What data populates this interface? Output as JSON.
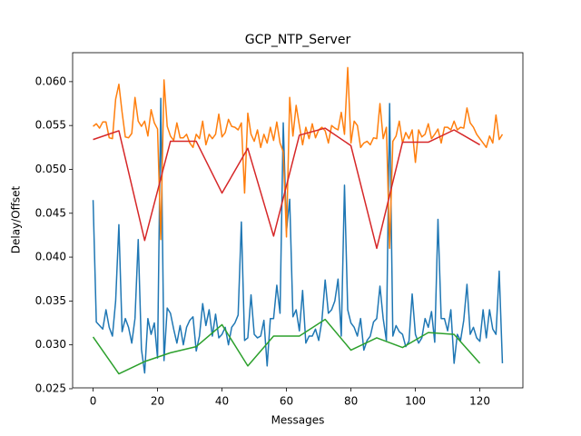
{
  "chart_data": {
    "type": "line",
    "title": "GCP_NTP_Server",
    "xlabel": "Messages",
    "ylabel": "Delay/Offset",
    "xlim": [
      -6.35,
      133.35
    ],
    "ylim": [
      0.0251,
      0.0633
    ],
    "xticks": [
      0,
      20,
      40,
      60,
      80,
      100,
      120
    ],
    "yticks": [
      0.025,
      {
        "value": 0.03,
        "label": "0.030"
      },
      0.035,
      {
        "value": 0.04,
        "label": "0.040"
      },
      0.045,
      {
        "value": 0.05,
        "label": "0.050"
      },
      0.055,
      {
        "value": 0.06,
        "label": "0.060"
      }
    ],
    "series": [
      {
        "color": "#1f77b4",
        "x": [
          0,
          1,
          2,
          3,
          4,
          5,
          6,
          7,
          8,
          9,
          10,
          11,
          12,
          13,
          14,
          15,
          16,
          17,
          18,
          19,
          20,
          21,
          22,
          23,
          24,
          25,
          26,
          27,
          28,
          29,
          30,
          31,
          32,
          33,
          34,
          35,
          36,
          37,
          38,
          39,
          40,
          41,
          42,
          43,
          44,
          45,
          46,
          47,
          48,
          49,
          50,
          51,
          52,
          53,
          54,
          55,
          56,
          57,
          58,
          59,
          60,
          61,
          62,
          63,
          64,
          65,
          66,
          67,
          68,
          69,
          70,
          71,
          72,
          73,
          74,
          75,
          76,
          77,
          78,
          79,
          80,
          81,
          82,
          83,
          84,
          85,
          86,
          87,
          88,
          89,
          90,
          91,
          92,
          93,
          94,
          95,
          96,
          97,
          98,
          99,
          100,
          101,
          102,
          103,
          104,
          105,
          106,
          107,
          108,
          109,
          110,
          111,
          112,
          113,
          114,
          115,
          116,
          117,
          118,
          119,
          120,
          121,
          122,
          123,
          124,
          125,
          126,
          127
        ],
        "values": [
          0.0465,
          0.0326,
          0.0322,
          0.0318,
          0.034,
          0.032,
          0.031,
          0.035,
          0.0437,
          0.0315,
          0.033,
          0.032,
          0.0302,
          0.033,
          0.042,
          0.0295,
          0.0268,
          0.033,
          0.0312,
          0.0325,
          0.0285,
          0.0581,
          0.0282,
          0.0342,
          0.0336,
          0.0318,
          0.0302,
          0.0322,
          0.03,
          0.032,
          0.0328,
          0.0332,
          0.0293,
          0.031,
          0.0347,
          0.0322,
          0.034,
          0.031,
          0.0335,
          0.0308,
          0.0312,
          0.032,
          0.03,
          0.032,
          0.0325,
          0.0334,
          0.044,
          0.0305,
          0.0308,
          0.0357,
          0.0312,
          0.0308,
          0.031,
          0.0328,
          0.0276,
          0.033,
          0.033,
          0.0368,
          0.0336,
          0.0553,
          0.043,
          0.0466,
          0.0332,
          0.034,
          0.0316,
          0.0362,
          0.0302,
          0.031,
          0.031,
          0.0318,
          0.0305,
          0.0328,
          0.0374,
          0.0336,
          0.034,
          0.035,
          0.0375,
          0.031,
          0.0482,
          0.034,
          0.0325,
          0.032,
          0.031,
          0.033,
          0.0294,
          0.0305,
          0.031,
          0.0326,
          0.033,
          0.0367,
          0.033,
          0.0305,
          0.0575,
          0.031,
          0.0322,
          0.0315,
          0.0312,
          0.0298,
          0.0304,
          0.0358,
          0.0312,
          0.0302,
          0.0308,
          0.033,
          0.032,
          0.0338,
          0.0303,
          0.0443,
          0.033,
          0.033,
          0.0316,
          0.034,
          0.0279,
          0.0312,
          0.0305,
          0.0328,
          0.0369,
          0.0312,
          0.032,
          0.0308,
          0.0304,
          0.034,
          0.0308,
          0.034,
          0.0318,
          0.0312,
          0.0384,
          0.0279
        ]
      },
      {
        "color": "#ff7f0e",
        "x": [
          0,
          1,
          2,
          3,
          4,
          5,
          6,
          7,
          8,
          9,
          10,
          11,
          12,
          13,
          14,
          15,
          16,
          17,
          18,
          19,
          20,
          21,
          22,
          23,
          24,
          25,
          26,
          27,
          28,
          29,
          30,
          31,
          32,
          33,
          34,
          35,
          36,
          37,
          38,
          39,
          40,
          41,
          42,
          43,
          44,
          45,
          46,
          47,
          48,
          49,
          50,
          51,
          52,
          53,
          54,
          55,
          56,
          57,
          58,
          59,
          60,
          61,
          62,
          63,
          64,
          65,
          66,
          67,
          68,
          69,
          70,
          71,
          72,
          73,
          74,
          75,
          76,
          77,
          78,
          79,
          80,
          81,
          82,
          83,
          84,
          85,
          86,
          87,
          88,
          89,
          90,
          91,
          92,
          93,
          94,
          95,
          96,
          97,
          98,
          99,
          100,
          101,
          102,
          103,
          104,
          105,
          106,
          107,
          108,
          109,
          110,
          111,
          112,
          113,
          114,
          115,
          116,
          117,
          118,
          119,
          120,
          121,
          122,
          123,
          124,
          125,
          126,
          127
        ],
        "values": [
          0.0549,
          0.0552,
          0.0547,
          0.0554,
          0.0554,
          0.0536,
          0.0535,
          0.058,
          0.0597,
          0.0565,
          0.0537,
          0.0536,
          0.0541,
          0.0582,
          0.0555,
          0.0549,
          0.0555,
          0.0538,
          0.0568,
          0.0553,
          0.0546,
          0.042,
          0.0602,
          0.0549,
          0.0538,
          0.0533,
          0.0553,
          0.0536,
          0.0536,
          0.054,
          0.053,
          0.0525,
          0.054,
          0.0535,
          0.0555,
          0.0528,
          0.054,
          0.0535,
          0.054,
          0.0563,
          0.0537,
          0.0542,
          0.0557,
          0.0549,
          0.0548,
          0.0545,
          0.0553,
          0.0473,
          0.0564,
          0.054,
          0.0532,
          0.0545,
          0.0525,
          0.054,
          0.053,
          0.0548,
          0.0533,
          0.0554,
          0.053,
          0.052,
          0.0423,
          0.0582,
          0.0538,
          0.0573,
          0.055,
          0.0528,
          0.0548,
          0.0535,
          0.0552,
          0.0536,
          0.0545,
          0.0548,
          0.0544,
          0.053,
          0.055,
          0.0547,
          0.0545,
          0.0565,
          0.054,
          0.0616,
          0.053,
          0.0555,
          0.055,
          0.0525,
          0.053,
          0.0532,
          0.0528,
          0.0536,
          0.0535,
          0.0575,
          0.0535,
          0.0548,
          0.041,
          0.0532,
          0.0538,
          0.0555,
          0.053,
          0.0542,
          0.0535,
          0.0545,
          0.0508,
          0.0545,
          0.0537,
          0.054,
          0.0552,
          0.0535,
          0.054,
          0.0546,
          0.053,
          0.0548,
          0.0548,
          0.0545,
          0.0555,
          0.0545,
          0.0548,
          0.0547,
          0.057,
          0.0553,
          0.0548,
          0.054,
          0.0535,
          0.053,
          0.0525,
          0.0538,
          0.053,
          0.0562,
          0.0534,
          0.054
        ]
      },
      {
        "color": "#d62728",
        "x": [
          0,
          8,
          16,
          24,
          32,
          40,
          48,
          56,
          64,
          72,
          80,
          88,
          96,
          104,
          112,
          120
        ],
        "values": [
          0.0534,
          0.0544,
          0.0419,
          0.0532,
          0.0532,
          0.0473,
          0.0524,
          0.0424,
          0.0539,
          0.0547,
          0.0527,
          0.041,
          0.0531,
          0.0531,
          0.0545,
          0.0528
        ]
      },
      {
        "color": "#2ca02c",
        "x": [
          0,
          8,
          16,
          24,
          32,
          40,
          48,
          56,
          64,
          72,
          80,
          88,
          96,
          104,
          112,
          120
        ],
        "values": [
          0.0309,
          0.0267,
          0.0281,
          0.0291,
          0.0298,
          0.0323,
          0.0276,
          0.031,
          0.031,
          0.0329,
          0.0294,
          0.0308,
          0.0297,
          0.0314,
          0.0312,
          0.0279
        ]
      }
    ]
  }
}
